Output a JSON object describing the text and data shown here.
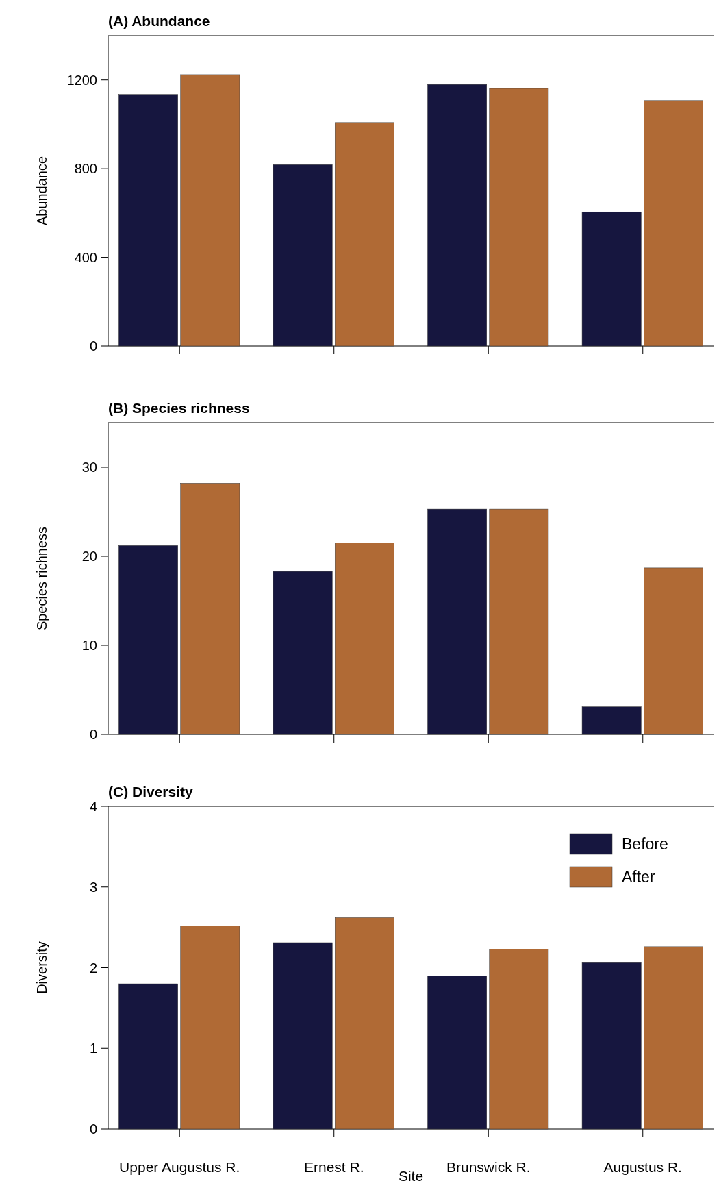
{
  "chart_data": [
    {
      "type": "bar",
      "title": "(A) Abundance",
      "ylabel": "Abundance",
      "categories": [
        null,
        null,
        null,
        null
      ],
      "series": [
        {
          "color": "#16163f",
          "values": [
            1135,
            818,
            1180,
            605
          ]
        },
        {
          "color": "#b06a35",
          "values": [
            1224,
            1008,
            1162,
            1107
          ]
        }
      ],
      "ylim": [
        0,
        1400
      ],
      "yticks": [
        0,
        400,
        800,
        1200
      ],
      "tick_labels": "y"
    },
    {
      "type": "bar",
      "title": "(B) Species richness",
      "ylabel": "Species richness",
      "categories": [
        null,
        null,
        null,
        null
      ],
      "series": [
        {
          "color": "#16163f",
          "values": [
            21.2,
            18.3,
            25.3,
            3.1
          ]
        },
        {
          "color": "#b06a35",
          "values": [
            28.2,
            21.5,
            25.3,
            18.7
          ]
        }
      ],
      "ylim": [
        0,
        35
      ],
      "yticks": [
        0,
        10,
        20,
        30
      ],
      "tick_labels": "y"
    },
    {
      "type": "bar",
      "title": "(C) Diversity",
      "xlabel": "Site",
      "ylabel": "Diversity",
      "categories": [
        "Upper Augustus R.",
        "Ernest R.",
        "Brunswick R.",
        "Augustus R."
      ],
      "series": [
        {
          "name": "Before",
          "color": "#16163f",
          "values": [
            1.8,
            2.31,
            1.9,
            2.07
          ]
        },
        {
          "name": "After",
          "color": "#b06a35",
          "values": [
            2.52,
            2.62,
            2.23,
            2.26
          ]
        }
      ],
      "ylim": [
        0,
        4
      ],
      "yticks": [
        0,
        1,
        2,
        3,
        4
      ],
      "legend": "top right"
    }
  ]
}
